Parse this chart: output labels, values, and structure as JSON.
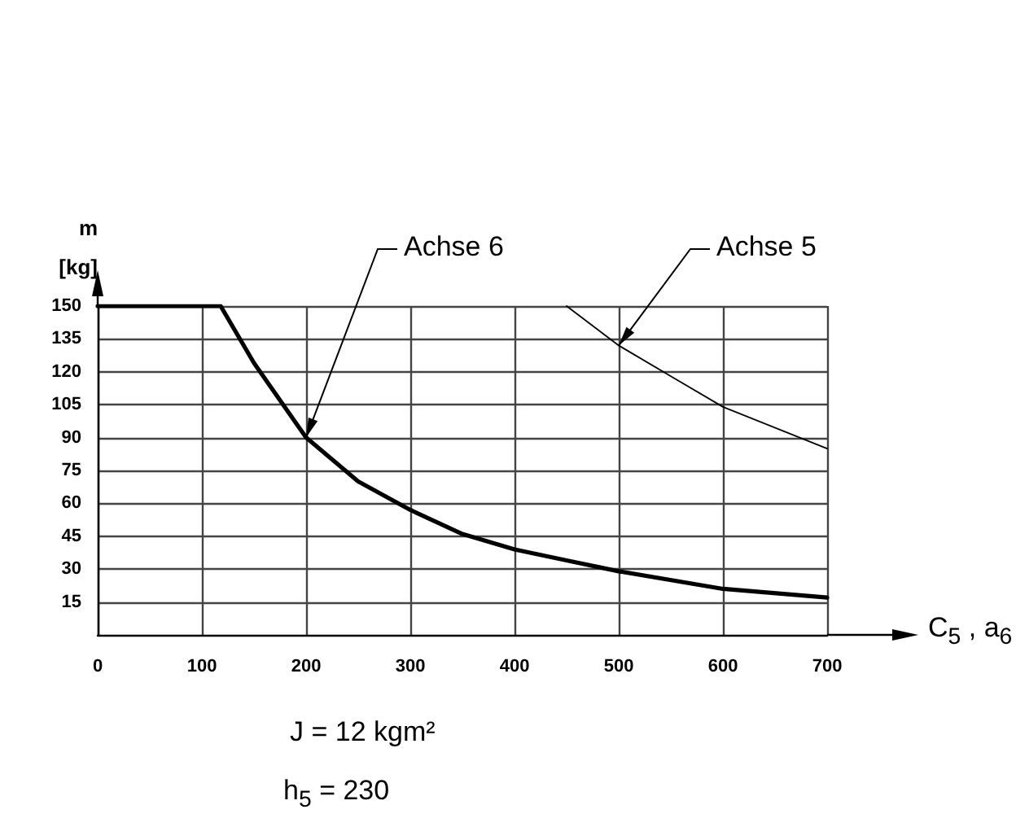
{
  "chart_data": {
    "type": "line",
    "xlabel": "C$_{5}$ , a$_{6}$",
    "ylabel": "m\n[kg]",
    "series": [
      {
        "name": "Achse 6",
        "color": "#000000",
        "x": [
          0,
          118,
          150,
          200,
          250,
          300,
          350,
          400,
          450,
          500,
          600,
          700
        ],
        "values": [
          150,
          150,
          124,
          90,
          70,
          57,
          46,
          39,
          34,
          29,
          21,
          17
        ]
      },
      {
        "name": "Achse 5",
        "color": "#000000",
        "x": [
          450,
          500,
          550,
          600,
          700
        ],
        "values": [
          150,
          132,
          118,
          104,
          85
        ]
      }
    ],
    "xlim": [
      0,
      700
    ],
    "xticks": [
      0,
      100,
      200,
      300,
      400,
      500,
      600,
      700
    ],
    "ylim": [
      0,
      150
    ],
    "yticks": [
      15,
      30,
      45,
      60,
      75,
      90,
      105,
      120,
      135,
      150
    ],
    "grid": true,
    "legend": false,
    "marker": "none",
    "line_style": "solid",
    "annotations": [
      "J = 12 kgm²",
      "h$_{5}$ = 230"
    ]
  }
}
